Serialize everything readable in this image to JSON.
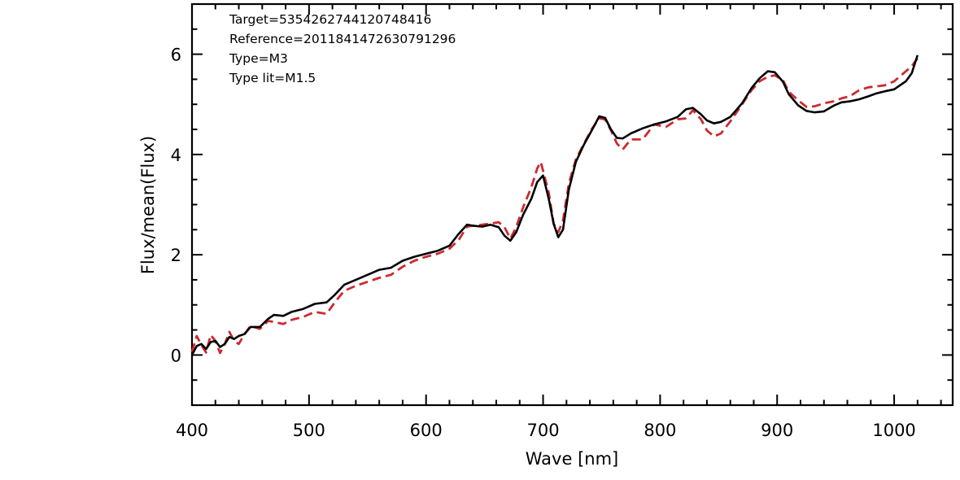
{
  "chart_data": {
    "type": "line",
    "xlabel": "Wave [nm]",
    "ylabel": "Flux/mean(Flux)",
    "xlim": [
      400,
      1050
    ],
    "ylim": [
      -1,
      7
    ],
    "x_ticks": [
      400,
      500,
      600,
      700,
      800,
      900,
      1000
    ],
    "y_ticks": [
      0,
      2,
      4,
      6
    ],
    "annotations": [
      "Target=5354262744120748416",
      "Reference=2011841472630791296",
      "Type=M3",
      "Type lit=M1.5"
    ],
    "grid": false,
    "series": [
      {
        "color": "#000000",
        "style": "solid",
        "points": [
          [
            400,
            0.0
          ],
          [
            404,
            0.18
          ],
          [
            408,
            0.22
          ],
          [
            412,
            0.12
          ],
          [
            416,
            0.26
          ],
          [
            420,
            0.28
          ],
          [
            424,
            0.16
          ],
          [
            428,
            0.22
          ],
          [
            432,
            0.36
          ],
          [
            436,
            0.32
          ],
          [
            440,
            0.38
          ],
          [
            445,
            0.42
          ],
          [
            450,
            0.56
          ],
          [
            458,
            0.56
          ],
          [
            465,
            0.72
          ],
          [
            470,
            0.8
          ],
          [
            478,
            0.78
          ],
          [
            485,
            0.86
          ],
          [
            495,
            0.92
          ],
          [
            505,
            1.02
          ],
          [
            515,
            1.05
          ],
          [
            522,
            1.2
          ],
          [
            530,
            1.4
          ],
          [
            540,
            1.5
          ],
          [
            550,
            1.6
          ],
          [
            560,
            1.7
          ],
          [
            570,
            1.74
          ],
          [
            580,
            1.88
          ],
          [
            590,
            1.96
          ],
          [
            600,
            2.02
          ],
          [
            610,
            2.08
          ],
          [
            620,
            2.18
          ],
          [
            628,
            2.42
          ],
          [
            635,
            2.6
          ],
          [
            640,
            2.58
          ],
          [
            648,
            2.56
          ],
          [
            655,
            2.6
          ],
          [
            662,
            2.55
          ],
          [
            667,
            2.38
          ],
          [
            672,
            2.28
          ],
          [
            677,
            2.45
          ],
          [
            683,
            2.8
          ],
          [
            690,
            3.12
          ],
          [
            695,
            3.45
          ],
          [
            700,
            3.58
          ],
          [
            705,
            3.1
          ],
          [
            709,
            2.62
          ],
          [
            713,
            2.35
          ],
          [
            717,
            2.5
          ],
          [
            722,
            3.3
          ],
          [
            728,
            3.85
          ],
          [
            735,
            4.2
          ],
          [
            742,
            4.5
          ],
          [
            748,
            4.76
          ],
          [
            753,
            4.73
          ],
          [
            758,
            4.5
          ],
          [
            763,
            4.33
          ],
          [
            768,
            4.32
          ],
          [
            775,
            4.42
          ],
          [
            785,
            4.52
          ],
          [
            795,
            4.6
          ],
          [
            805,
            4.66
          ],
          [
            815,
            4.75
          ],
          [
            822,
            4.9
          ],
          [
            828,
            4.93
          ],
          [
            835,
            4.8
          ],
          [
            840,
            4.68
          ],
          [
            846,
            4.62
          ],
          [
            852,
            4.65
          ],
          [
            860,
            4.75
          ],
          [
            870,
            5.02
          ],
          [
            878,
            5.32
          ],
          [
            885,
            5.52
          ],
          [
            892,
            5.66
          ],
          [
            898,
            5.64
          ],
          [
            905,
            5.45
          ],
          [
            910,
            5.2
          ],
          [
            918,
            4.98
          ],
          [
            925,
            4.87
          ],
          [
            932,
            4.84
          ],
          [
            940,
            4.86
          ],
          [
            948,
            4.97
          ],
          [
            955,
            5.04
          ],
          [
            962,
            5.06
          ],
          [
            970,
            5.1
          ],
          [
            978,
            5.16
          ],
          [
            985,
            5.22
          ],
          [
            992,
            5.26
          ],
          [
            1000,
            5.3
          ],
          [
            1005,
            5.38
          ],
          [
            1010,
            5.46
          ],
          [
            1015,
            5.62
          ],
          [
            1020,
            5.98
          ]
        ]
      },
      {
        "color": "#cc2a2f",
        "style": "dashed",
        "points": [
          [
            400,
            0.06
          ],
          [
            404,
            0.38
          ],
          [
            408,
            0.2
          ],
          [
            412,
            0.05
          ],
          [
            416,
            0.4
          ],
          [
            420,
            0.28
          ],
          [
            424,
            0.04
          ],
          [
            428,
            0.22
          ],
          [
            432,
            0.46
          ],
          [
            436,
            0.28
          ],
          [
            440,
            0.22
          ],
          [
            445,
            0.42
          ],
          [
            450,
            0.58
          ],
          [
            458,
            0.52
          ],
          [
            465,
            0.68
          ],
          [
            470,
            0.66
          ],
          [
            478,
            0.62
          ],
          [
            485,
            0.7
          ],
          [
            495,
            0.76
          ],
          [
            505,
            0.86
          ],
          [
            515,
            0.82
          ],
          [
            522,
            1.05
          ],
          [
            530,
            1.28
          ],
          [
            540,
            1.38
          ],
          [
            550,
            1.46
          ],
          [
            560,
            1.54
          ],
          [
            570,
            1.6
          ],
          [
            580,
            1.76
          ],
          [
            590,
            1.88
          ],
          [
            600,
            1.96
          ],
          [
            610,
            2.02
          ],
          [
            620,
            2.12
          ],
          [
            628,
            2.3
          ],
          [
            635,
            2.56
          ],
          [
            640,
            2.58
          ],
          [
            648,
            2.6
          ],
          [
            655,
            2.62
          ],
          [
            662,
            2.65
          ],
          [
            667,
            2.55
          ],
          [
            672,
            2.32
          ],
          [
            677,
            2.55
          ],
          [
            683,
            2.95
          ],
          [
            690,
            3.35
          ],
          [
            695,
            3.72
          ],
          [
            698,
            3.85
          ],
          [
            705,
            3.22
          ],
          [
            709,
            2.62
          ],
          [
            713,
            2.45
          ],
          [
            717,
            2.68
          ],
          [
            722,
            3.42
          ],
          [
            728,
            3.9
          ],
          [
            735,
            4.22
          ],
          [
            742,
            4.52
          ],
          [
            748,
            4.72
          ],
          [
            753,
            4.7
          ],
          [
            758,
            4.48
          ],
          [
            763,
            4.22
          ],
          [
            768,
            4.1
          ],
          [
            775,
            4.3
          ],
          [
            785,
            4.3
          ],
          [
            795,
            4.6
          ],
          [
            805,
            4.55
          ],
          [
            815,
            4.7
          ],
          [
            822,
            4.72
          ],
          [
            828,
            4.88
          ],
          [
            835,
            4.7
          ],
          [
            840,
            4.48
          ],
          [
            846,
            4.36
          ],
          [
            852,
            4.42
          ],
          [
            860,
            4.66
          ],
          [
            870,
            5.0
          ],
          [
            878,
            5.28
          ],
          [
            885,
            5.46
          ],
          [
            892,
            5.55
          ],
          [
            898,
            5.58
          ],
          [
            905,
            5.48
          ],
          [
            910,
            5.25
          ],
          [
            918,
            5.08
          ],
          [
            925,
            4.95
          ],
          [
            932,
            4.96
          ],
          [
            940,
            5.02
          ],
          [
            948,
            5.06
          ],
          [
            955,
            5.12
          ],
          [
            962,
            5.16
          ],
          [
            970,
            5.28
          ],
          [
            978,
            5.34
          ],
          [
            985,
            5.36
          ],
          [
            992,
            5.38
          ],
          [
            1000,
            5.46
          ],
          [
            1005,
            5.56
          ],
          [
            1010,
            5.66
          ],
          [
            1015,
            5.76
          ],
          [
            1020,
            5.92
          ]
        ]
      }
    ]
  }
}
